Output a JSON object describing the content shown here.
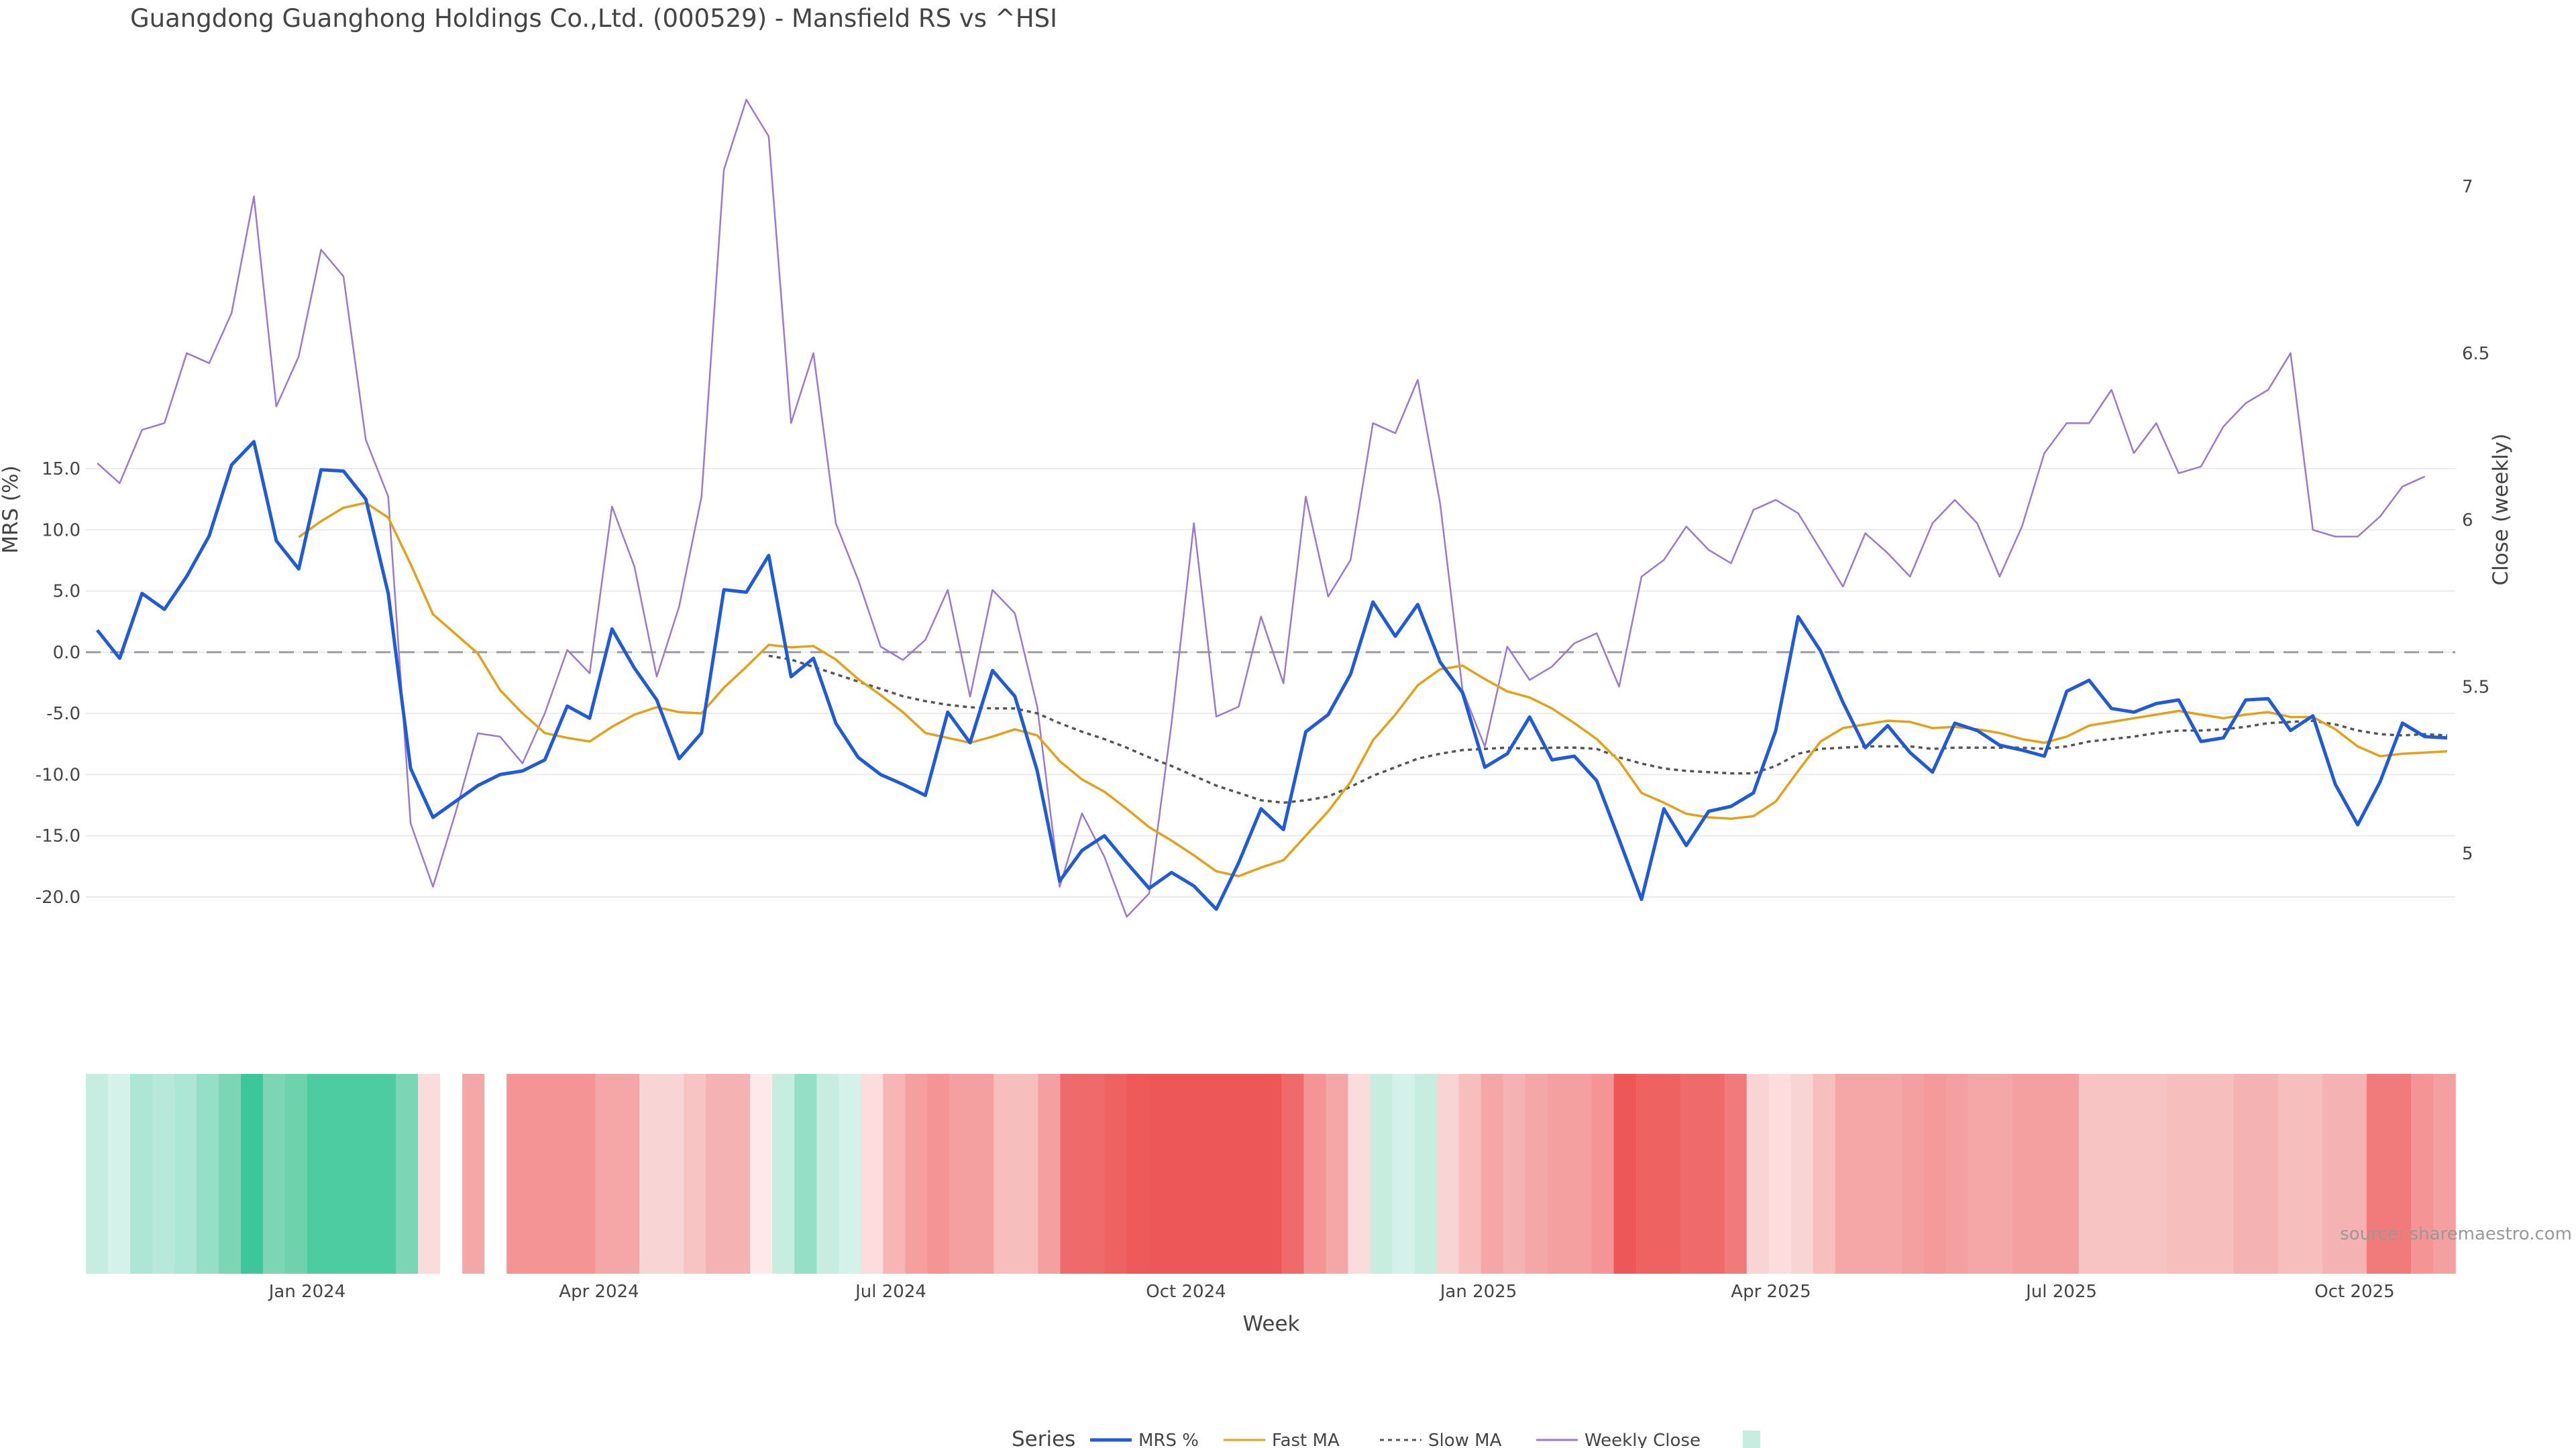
{
  "title": "Guangdong Guanghong Holdings Co.,Ltd. (000529) - Mansfield RS vs ^HSI",
  "source": "source: sharemaestro.com",
  "chart_data": {
    "type": "line",
    "ylabel": "MRS (%)",
    "y2label": "Close (weekly)",
    "xlabel": "Week",
    "ylim": [
      -20.5,
      17.5
    ],
    "y2lim": [
      4.85,
      7.2
    ],
    "yticks": [
      "15.0",
      "10.0",
      "5.0",
      "0.0",
      "-5.0",
      "-10.0",
      "-15.0",
      "-20.0"
    ],
    "yticks2": [
      "7",
      "6.5",
      "6",
      "5.5",
      "5"
    ],
    "xticks": [
      "Jan 2024",
      "Apr 2024",
      "Jul 2024",
      "Oct 2024",
      "Jan 2025",
      "Apr 2025",
      "Jul 2025",
      "Oct 2025"
    ],
    "reference_line": 0,
    "series": [
      {
        "name": "MRS %",
        "color": "#1f5bd6",
        "values": [
          1.8,
          -0.5,
          4.8,
          3.5,
          6.2,
          9.5,
          15.3,
          17.2,
          9.1,
          6.8,
          14.9,
          14.8,
          12.5,
          4.8,
          -9.5,
          -13.5,
          -12.2,
          -10.9,
          -10.0,
          -9.7,
          -8.8,
          -4.4,
          -5.4,
          1.9,
          -1.3,
          -3.9,
          -8.7,
          -6.6,
          5.1,
          4.9,
          7.9,
          -2.0,
          -0.5,
          -5.8,
          -8.6,
          -10.0,
          -10.8,
          -11.7,
          -4.9,
          -7.4,
          -1.5,
          -3.6,
          -9.7,
          -18.7,
          -16.2,
          -15.0,
          -17.2,
          -19.3,
          -18.0,
          -19.1,
          -21.0,
          -17.2,
          -12.8,
          -14.5,
          -6.5,
          -5.1,
          -1.8,
          4.1,
          1.3,
          3.9,
          -0.8,
          -3.3,
          -9.4,
          -8.3,
          -5.3,
          -8.8,
          -8.5,
          -10.5,
          -15.3,
          -20.2,
          -12.8,
          -15.8,
          -13.0,
          -12.6,
          -11.5,
          -6.4,
          2.9,
          0.1,
          -4.1,
          -7.8,
          -6.0,
          -8.2,
          -9.8,
          -5.8,
          -6.4,
          -7.6,
          -8.0,
          -8.5,
          -3.2,
          -2.3,
          -4.6,
          -4.9,
          -4.2,
          -3.9,
          -7.3,
          -7.0,
          -3.9,
          -3.8,
          -6.4,
          -5.2,
          -10.8,
          -14.1,
          -10.6,
          -5.8,
          -6.9,
          -7.0
        ]
      },
      {
        "name": "Fast MA",
        "color": "#e3a118",
        "values": [
          null,
          null,
          null,
          null,
          null,
          null,
          null,
          null,
          null,
          9.4,
          10.7,
          11.8,
          12.2,
          11.0,
          7.2,
          3.1,
          1.5,
          -0.1,
          -3.1,
          -5.0,
          -6.6,
          -7.0,
          -7.3,
          -6.1,
          -5.1,
          -4.5,
          -4.9,
          -5.0,
          -2.9,
          -1.2,
          0.6,
          0.4,
          0.5,
          -0.6,
          -2.2,
          -3.5,
          -4.9,
          -6.6,
          -7.0,
          -7.4,
          -6.9,
          -6.3,
          -6.8,
          -8.9,
          -10.4,
          -11.4,
          -12.8,
          -14.3,
          -15.4,
          -16.6,
          -17.9,
          -18.3,
          -17.6,
          -17.0,
          -15.0,
          -13.0,
          -10.6,
          -7.2,
          -5.1,
          -2.7,
          -1.4,
          -1.1,
          -2.2,
          -3.2,
          -3.7,
          -4.6,
          -5.8,
          -7.1,
          -8.9,
          -11.5,
          -12.3,
          -13.2,
          -13.5,
          -13.6,
          -13.4,
          -12.2,
          -9.7,
          -7.3,
          -6.2,
          -5.9,
          -5.6,
          -5.7,
          -6.2,
          -6.1,
          -6.3,
          -6.6,
          -7.1,
          -7.4,
          -6.9,
          -6.0,
          -5.7,
          -5.4,
          -5.1,
          -4.8,
          -5.1,
          -5.4,
          -5.1,
          -4.9,
          -5.3,
          -5.3,
          -6.3,
          -7.7,
          -8.5,
          -8.3,
          -8.2,
          -8.1
        ]
      },
      {
        "name": "Slow MA",
        "color": "#555555",
        "dash": true,
        "values": [
          null,
          null,
          null,
          null,
          null,
          null,
          null,
          null,
          null,
          null,
          null,
          null,
          null,
          null,
          null,
          null,
          null,
          null,
          null,
          null,
          null,
          null,
          null,
          null,
          null,
          null,
          null,
          null,
          null,
          null,
          -0.3,
          -0.6,
          -1.2,
          -1.8,
          -2.4,
          -3.0,
          -3.6,
          -4.0,
          -4.3,
          -4.5,
          -4.6,
          -4.6,
          -5.0,
          -5.8,
          -6.5,
          -7.1,
          -7.8,
          -8.6,
          -9.3,
          -10.1,
          -10.9,
          -11.5,
          -12.1,
          -12.3,
          -12.1,
          -11.8,
          -11.0,
          -10.1,
          -9.4,
          -8.7,
          -8.3,
          -8.0,
          -7.9,
          -7.8,
          -7.9,
          -7.8,
          -7.8,
          -7.9,
          -8.6,
          -9.1,
          -9.5,
          -9.7,
          -9.8,
          -9.9,
          -9.9,
          -9.3,
          -8.3,
          -7.9,
          -7.8,
          -7.7,
          -7.7,
          -7.7,
          -7.9,
          -7.8,
          -7.8,
          -7.8,
          -7.8,
          -7.9,
          -7.7,
          -7.3,
          -7.1,
          -6.9,
          -6.6,
          -6.4,
          -6.4,
          -6.3,
          -6.1,
          -5.8,
          -5.7,
          -5.6,
          -5.9,
          -6.4,
          -6.7,
          -6.8,
          -6.7,
          -6.8
        ]
      },
      {
        "name": "Weekly Close",
        "color": "#9b79d0",
        "axis": "right",
        "values": [
          6.17,
          6.11,
          6.27,
          6.29,
          6.5,
          6.47,
          6.62,
          6.97,
          6.34,
          6.49,
          6.81,
          6.73,
          6.24,
          6.07,
          5.09,
          4.9,
          5.12,
          5.36,
          5.35,
          5.27,
          5.42,
          5.61,
          5.54,
          6.04,
          5.86,
          5.53,
          5.74,
          6.07,
          7.05,
          7.26,
          7.15,
          6.29,
          6.5,
          5.99,
          5.82,
          5.62,
          5.58,
          5.64,
          5.79,
          5.47,
          5.79,
          5.72,
          5.44,
          4.9,
          5.12,
          4.99,
          4.81,
          4.88,
          5.39,
          5.99,
          5.41,
          5.44,
          5.71,
          5.51,
          6.07,
          5.77,
          5.88,
          6.29,
          6.26,
          6.42,
          6.05,
          5.49,
          5.32,
          5.62,
          5.52,
          5.56,
          5.63,
          5.66,
          5.5,
          5.83,
          5.88,
          5.98,
          5.91,
          5.87,
          6.03,
          6.06,
          6.02,
          5.91,
          5.8,
          5.96,
          5.9,
          5.83,
          5.99,
          6.06,
          5.99,
          5.83,
          5.98,
          6.2,
          6.29,
          6.29,
          6.39,
          6.2,
          6.29,
          6.14,
          6.16,
          6.28,
          6.35,
          6.39,
          6.5,
          5.97,
          5.95,
          5.95,
          6.01,
          6.1,
          6.13
        ]
      }
    ],
    "heatmap_strip": [
      "#c6ede0",
      "#d4f2e9",
      "#aee6d6",
      "#b7e8da",
      "#aee6d6",
      "#94dfc6",
      "#7cd6b6",
      "#3dc69a",
      "#7cd6b6",
      "#6ed2ad",
      "#4ccca0",
      "#4ccca0",
      "#4ccca0",
      "#4ccca0",
      "#7cd6b6",
      "#fadcdc",
      "#ffffff",
      "#f5a7a7",
      "#ffffff",
      "#f49494",
      "#f49494",
      "#f49494",
      "#f49494",
      "#f5a7a7",
      "#f5a7a7",
      "#f9d4d4",
      "#f9d4d4",
      "#f7c3c3",
      "#f5b2b2",
      "#f5b2b2",
      "#fde9e9",
      "#c6ede0",
      "#94dfc6",
      "#c6ede0",
      "#d4f2e9",
      "#fcdcdc",
      "#f7b5b5",
      "#f59f9f",
      "#f59494",
      "#f5a0a0",
      "#f5a0a0",
      "#f7bebe",
      "#f7bebe",
      "#f5a0a0",
      "#ef6b6b",
      "#ef6b6b",
      "#ef6262",
      "#ee5a5a",
      "#ee5757",
      "#ee5757",
      "#ee5757",
      "#ee5757",
      "#ee5757",
      "#ee5757",
      "#ef6b6b",
      "#f49494",
      "#f5a7a7",
      "#fadcdc",
      "#c6ede0",
      "#d4f2e9",
      "#c6ede0",
      "#f9d4d4",
      "#f7bebe",
      "#f5a7a7",
      "#f5b2b2",
      "#f5a7a7",
      "#f5a0a0",
      "#f5a0a0",
      "#f49494",
      "#ee5757",
      "#ef6262",
      "#ef6262",
      "#ef6b6b",
      "#ef6b6b",
      "#f17b7b",
      "#f9d4d4",
      "#fcdcdc",
      "#f9d4d4",
      "#f7bebe",
      "#f5a7a7",
      "#f5a7a7",
      "#f5a7a7",
      "#f5a0a0",
      "#f49a9a",
      "#f5a0a0",
      "#f5a7a7",
      "#f5a7a7",
      "#f5a0a0",
      "#f5a0a0",
      "#f5a0a0",
      "#f7c3c3",
      "#f7c3c3",
      "#f7c3c3",
      "#f7c3c3",
      "#f7bebe",
      "#f7bebe",
      "#f7bebe",
      "#f5b2b2",
      "#f5b2b2",
      "#f7bebe",
      "#f7bebe",
      "#f5b2b2",
      "#f5b2b2",
      "#f17b7b",
      "#f17b7b",
      "#f49494",
      "#f5a0a0"
    ],
    "legend": {
      "title": "Series",
      "entries": [
        "MRS %",
        "Fast MA",
        "Slow MA",
        "Weekly Close",
        ""
      ]
    }
  }
}
